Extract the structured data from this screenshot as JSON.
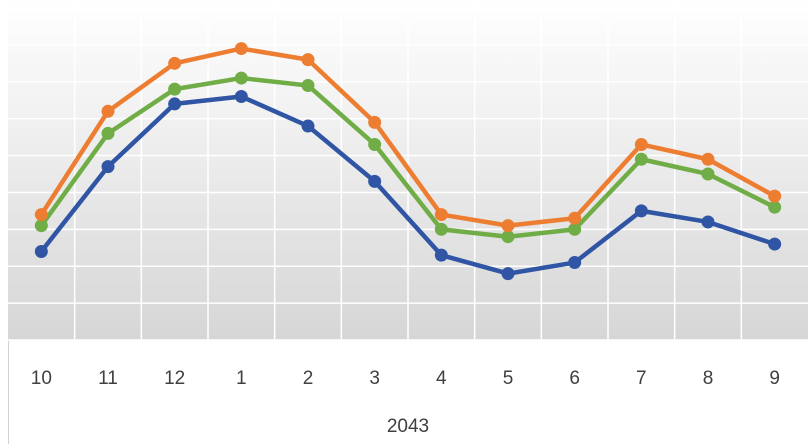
{
  "chart_data": {
    "type": "line",
    "categories": [
      "10",
      "11",
      "12",
      "1",
      "2",
      "3",
      "4",
      "5",
      "6",
      "7",
      "8",
      "9"
    ],
    "x_group_label": "2043",
    "series": [
      {
        "color": "#2f55a4",
        "values": [
          2.4,
          4.7,
          6.4,
          6.6,
          5.8,
          4.3,
          2.3,
          1.8,
          2.1,
          3.5,
          3.2,
          2.6
        ]
      },
      {
        "color": "#70ad47",
        "values": [
          3.1,
          5.6,
          6.8,
          7.1,
          6.9,
          5.3,
          3.0,
          2.8,
          3.0,
          4.9,
          4.5,
          3.6
        ]
      },
      {
        "color": "#ed7d31",
        "values": [
          3.4,
          6.2,
          7.5,
          7.9,
          7.6,
          5.9,
          3.4,
          3.1,
          3.3,
          5.3,
          4.9,
          3.9
        ]
      }
    ],
    "ylim": [
      0,
      9
    ],
    "yticks": [
      0,
      1,
      2,
      3,
      4,
      5,
      6,
      7,
      8,
      9
    ],
    "show_ytick_labels": false,
    "grid": true
  }
}
